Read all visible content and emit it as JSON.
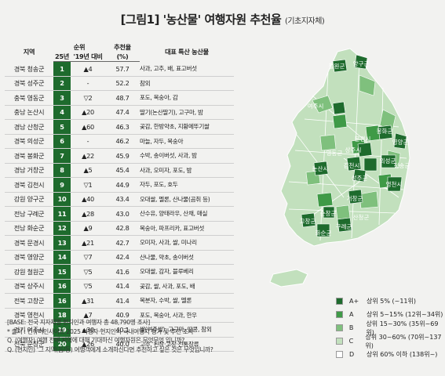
{
  "title_main": "[그림1] '농산물' 여행자원 추천율",
  "title_sub": "(기초지자체)",
  "headers": {
    "region": "지역",
    "rank": "순위",
    "rank25": "25년",
    "change": "'19년 대비",
    "pct": "추천율",
    "pct_unit": "(%)",
    "products": "대표 특산 농산물"
  },
  "chart_data": {
    "type": "table",
    "rows": [
      {
        "region": "경북 청송군",
        "rank": "1",
        "change": "▲4",
        "pct": "57.7",
        "products": "사과, 고추, 배, 표고버섯"
      },
      {
        "region": "경북 성주군",
        "rank": "2",
        "change": "-",
        "pct": "52.2",
        "products": "참외"
      },
      {
        "region": "충북 영동군",
        "rank": "3",
        "change": "▽2",
        "pct": "48.7",
        "products": "포도, 복숭아, 감"
      },
      {
        "region": "충남 논산시",
        "rank": "4",
        "change": "▲20",
        "pct": "47.4",
        "products": "딸기(논산딸기), 고구마, 밤"
      },
      {
        "region": "경남 산청군",
        "rank": "5",
        "change": "▲60",
        "pct": "46.3",
        "products": "곶감, 한방약초, 지황메뚜기쌀"
      },
      {
        "region": "경북 의성군",
        "rank": "6",
        "change": "-",
        "pct": "46.2",
        "products": "마늘, 자두, 복숭아"
      },
      {
        "region": "경북 봉화군",
        "rank": "7",
        "change": "▲22",
        "pct": "45.9",
        "products": "수박, 송이버섯, 사과, 밤"
      },
      {
        "region": "경남 거창군",
        "rank": "8",
        "change": "▲5",
        "pct": "45.4",
        "products": "사과, 오미자, 포도, 밤"
      },
      {
        "region": "경북 김천시",
        "rank": "9",
        "change": "▽1",
        "pct": "44.9",
        "products": "자두, 포도, 호두"
      },
      {
        "region": "강원 양구군",
        "rank": "10",
        "change": "▲40",
        "pct": "43.4",
        "products": "오대쌀, 멜론, 산나물(곰취 등)"
      },
      {
        "region": "전남 구례군",
        "rank": "11",
        "change": "▲28",
        "pct": "43.0",
        "products": "산수유, 양태라우, 산채, 매실"
      },
      {
        "region": "전남 화순군",
        "rank": "12",
        "change": "▲9",
        "pct": "42.8",
        "products": "복숭아, 파프리카, 표고버섯"
      },
      {
        "region": "경북 문경시",
        "rank": "13",
        "change": "▲21",
        "pct": "42.7",
        "products": "오미자, 사과, 쌀, 미나리"
      },
      {
        "region": "경북 영양군",
        "rank": "14",
        "change": "▽7",
        "pct": "42.4",
        "products": "산나물, 약초, 송이버섯"
      },
      {
        "region": "강원 철원군",
        "rank": "15",
        "change": "▽5",
        "pct": "41.6",
        "products": "오대쌀, 감자, 블루베리"
      },
      {
        "region": "경북 상주시",
        "rank": "16",
        "change": "▽5",
        "pct": "41.4",
        "products": "곶감, 쌀, 사과, 포도, 배"
      },
      {
        "region": "전북 고창군",
        "rank": "16",
        "change": "▲31",
        "pct": "41.4",
        "products": "복분자, 수박, 쌀, 멜론"
      },
      {
        "region": "경북 영천시",
        "rank": "18",
        "change": "▲7",
        "pct": "40.9",
        "products": "포도, 복숭아, 사과, 한우"
      },
      {
        "region": "경기 여주시",
        "rank": "19",
        "change": "▲30",
        "pct": "40.1",
        "products": "쌀(여주쌀), 고구마, 땅콩, 참외"
      },
      {
        "region": "전북 순창군",
        "rank": "20",
        "change": "▲26",
        "pct": "40.0",
        "products": "고추, 된장·고창·전통장류"
      }
    ]
  },
  "notes": [
    "[BASE: 전국 지자체별 현지인과 여행자 총 48,790명 조사]",
    "* 출처 : 컨슈머인사이트 2025 여행자·현지인의 국내여행지 평가 및 추천 조사",
    "Q. (여행자) 여행 전에 지역에 대해 기대하신 여행자원은 무엇무엇 입니까?",
    "Q. (현지인) '그 지역(읍/동) 여행객에게 소개하신다면 추천하고 싶은 것은 무엇입니까?"
  ],
  "map_labels": [
    {
      "id": "cheorwon",
      "text": "철원군"
    },
    {
      "id": "yanggu",
      "text": "양구군"
    },
    {
      "id": "yeoju",
      "text": "여주시"
    },
    {
      "id": "bonghwa",
      "text": "봉화군"
    },
    {
      "id": "yeongyang",
      "text": "영양군"
    },
    {
      "id": "mungyeong",
      "text": "문경시"
    },
    {
      "id": "yeongdong",
      "text": "영동군"
    },
    {
      "id": "sangju",
      "text": "상주시"
    },
    {
      "id": "uiseong",
      "text": "의성군"
    },
    {
      "id": "cheongsong",
      "text": "청송군"
    },
    {
      "id": "nonsan",
      "text": "논산시"
    },
    {
      "id": "gimcheon",
      "text": "김천시"
    },
    {
      "id": "seongju",
      "text": "성주군"
    },
    {
      "id": "yeongcheon",
      "text": "영천시"
    },
    {
      "id": "geochang",
      "text": "거창군"
    },
    {
      "id": "gochang",
      "text": "고창군"
    },
    {
      "id": "sunchang",
      "text": "순창군"
    },
    {
      "id": "gurye",
      "text": "구례군"
    },
    {
      "id": "sancheong",
      "text": "산청군"
    },
    {
      "id": "hwasun",
      "text": "화순군"
    }
  ],
  "legend": [
    {
      "grade": "A+",
      "desc": "상위 5% (~11위)",
      "color": "#1e6b2d"
    },
    {
      "grade": "A",
      "desc": "상위 5~15% (12위~34위)",
      "color": "#3f9a47"
    },
    {
      "grade": "B",
      "desc": "상위 15~30% (35위~69위)",
      "color": "#7fc07d"
    },
    {
      "grade": "C",
      "desc": "상위 30~60% (70위~137위)",
      "color": "#c2e0bd"
    },
    {
      "grade": "D",
      "desc": "상위 60% 이하 (138위~)",
      "color": "#ffffff"
    }
  ]
}
